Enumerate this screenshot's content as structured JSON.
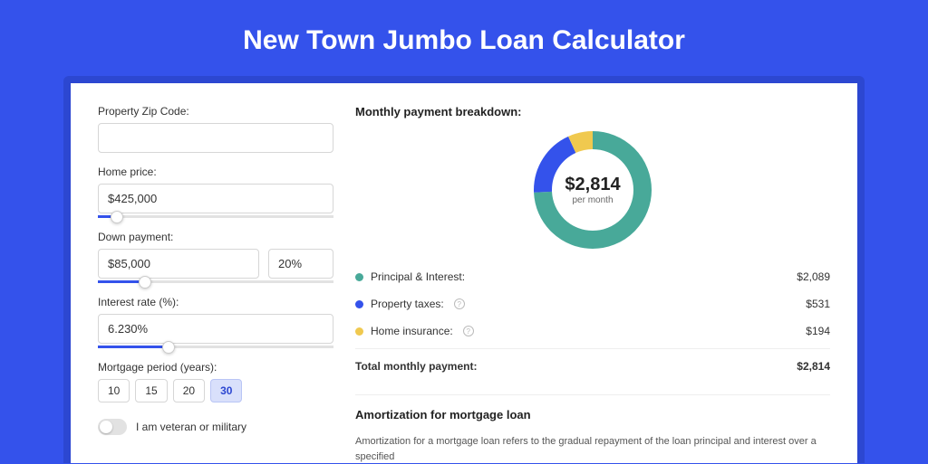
{
  "page": {
    "title": "New Town Jumbo Loan Calculator",
    "background_color": "#3452eb",
    "shadow_color": "#2c47d1",
    "card_bg": "#ffffff"
  },
  "form": {
    "zip": {
      "label": "Property Zip Code:",
      "value": ""
    },
    "home_price": {
      "label": "Home price:",
      "value": "$425,000",
      "slider_pct": 8
    },
    "down_payment": {
      "label": "Down payment:",
      "amount": "$85,000",
      "percent": "20%",
      "slider_pct": 20
    },
    "interest_rate": {
      "label": "Interest rate (%):",
      "value": "6.230%",
      "slider_pct": 30
    },
    "mortgage_period": {
      "label": "Mortgage period (years):",
      "options": [
        "10",
        "15",
        "20",
        "30"
      ],
      "selected": "30"
    },
    "veteran": {
      "label": "I am veteran or military",
      "checked": false
    }
  },
  "breakdown": {
    "heading": "Monthly payment breakdown:",
    "donut": {
      "type": "donut",
      "center_value": "$2,814",
      "center_sub": "per month",
      "stroke_width": 20,
      "radius": 55,
      "slices": [
        {
          "key": "principal_interest",
          "value": 2089,
          "color": "#48a999"
        },
        {
          "key": "property_taxes",
          "value": 531,
          "color": "#3452eb"
        },
        {
          "key": "home_insurance",
          "value": 194,
          "color": "#f0c94f"
        }
      ]
    },
    "legend": [
      {
        "dot": "#48a999",
        "label": "Principal & Interest:",
        "amount": "$2,089",
        "info": false
      },
      {
        "dot": "#3452eb",
        "label": "Property taxes:",
        "amount": "$531",
        "info": true
      },
      {
        "dot": "#f0c94f",
        "label": "Home insurance:",
        "amount": "$194",
        "info": true
      }
    ],
    "total": {
      "label": "Total monthly payment:",
      "amount": "$2,814"
    }
  },
  "amortization": {
    "heading": "Amortization for mortgage loan",
    "body": "Amortization for a mortgage loan refers to the gradual repayment of the loan principal and interest over a specified"
  }
}
